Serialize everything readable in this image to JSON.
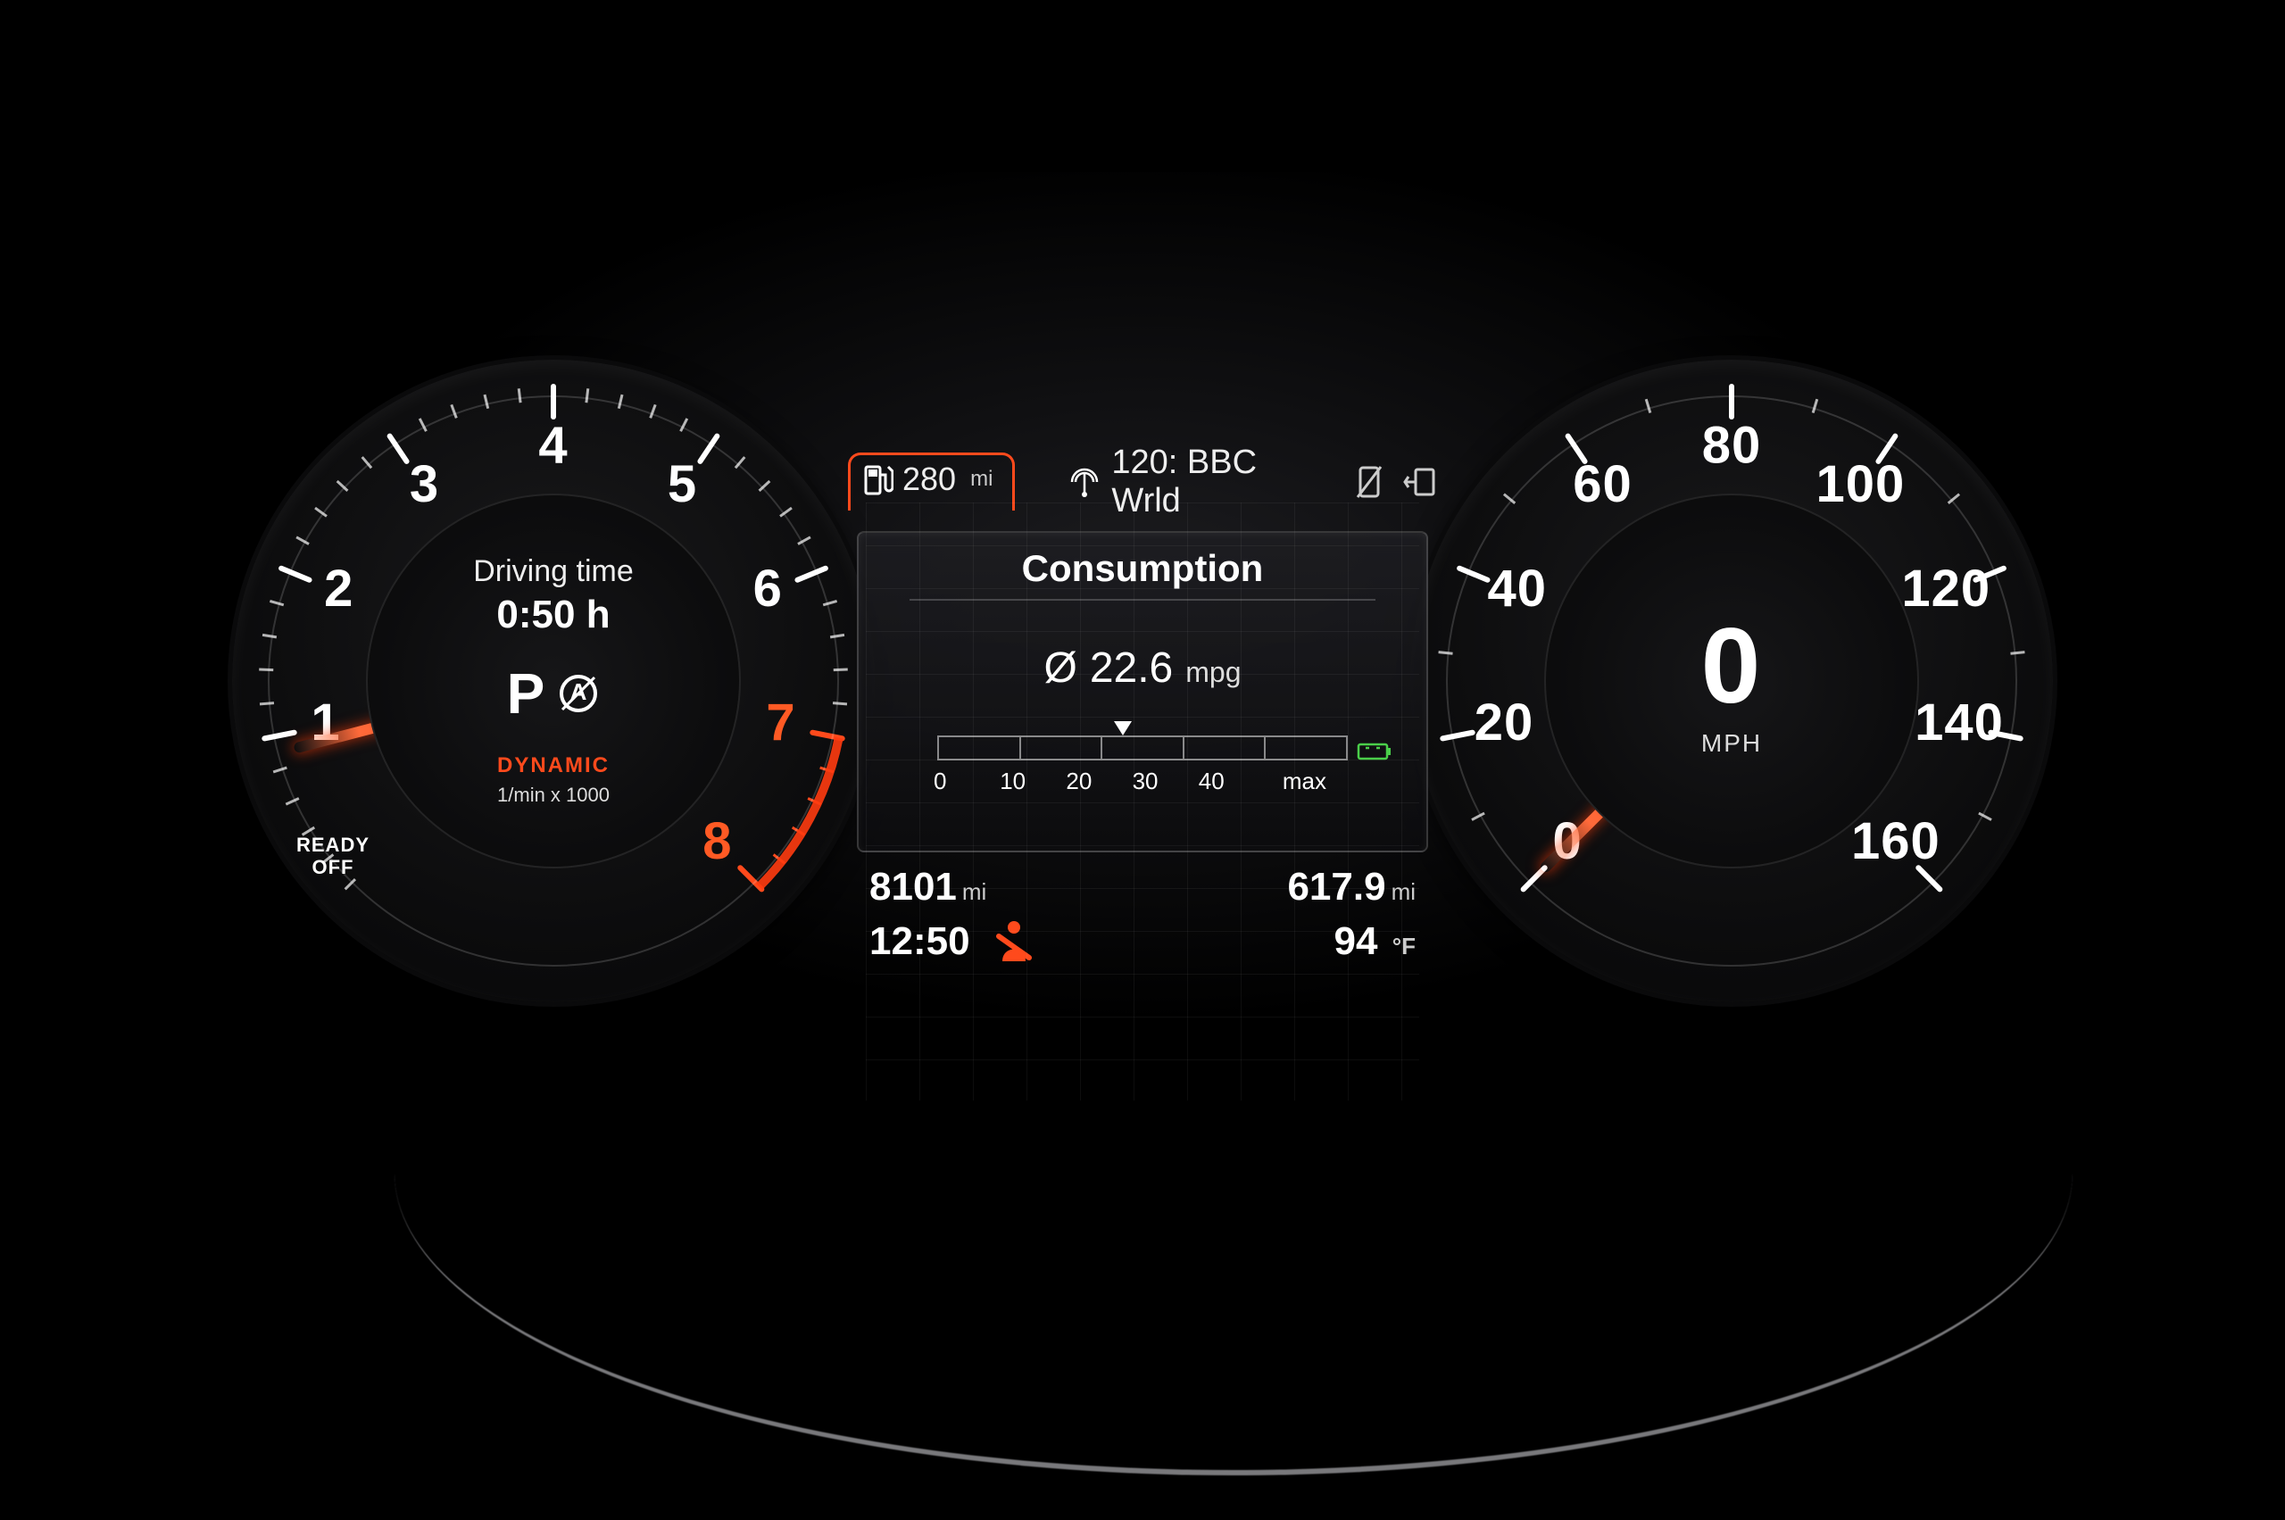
{
  "colors": {
    "needle": "#ff3b10",
    "redline": "#ff4a1c",
    "accent": "#ff4a1c",
    "eco_icon": "#4acf4a",
    "seatbelt": "#ff4a1c",
    "background": "#000000",
    "gauge_bg": "#0c0c0d",
    "text": "#ffffff",
    "text_muted": "#cccccc"
  },
  "tachometer": {
    "min": 0,
    "max": 8,
    "start_angle_deg": -225,
    "end_angle_deg": 45,
    "redline_from": 7,
    "needle_value": 0.9,
    "major_ticks": [
      1,
      2,
      3,
      4,
      5,
      6,
      7,
      8
    ],
    "unit_label": "1/min x 1000",
    "ready_label": "READY",
    "off_label": "OFF",
    "mode_label": "DYNAMIC",
    "center_title": "Driving time",
    "center_value": "0:50 h",
    "gear": "P",
    "tick_font_size": 58
  },
  "speedometer": {
    "min": 0,
    "max": 160,
    "start_angle_deg": -225,
    "end_angle_deg": 45,
    "needle_value": 0,
    "major_ticks": [
      0,
      20,
      40,
      60,
      80,
      100,
      120,
      140,
      160
    ],
    "minor_step": 10,
    "speed_value": "0",
    "speed_unit": "MPH",
    "tick_font_size": 52
  },
  "topbar": {
    "range_value": "280",
    "range_unit": "mi",
    "radio_label": "120: BBC Wrld"
  },
  "consumption_panel": {
    "title": "Consumption",
    "avg_value": "22.6",
    "avg_unit": "mpg",
    "scale_ticks": [
      "0",
      "10",
      "20",
      "30",
      "40",
      "max"
    ],
    "scale_max_value": 50,
    "marker_value": 22.6
  },
  "odometer": {
    "total": "8101",
    "total_unit": "mi",
    "trip": "617.9",
    "trip_unit": "mi"
  },
  "status": {
    "clock": "12:50",
    "temp_value": "94",
    "temp_unit": "°F"
  }
}
